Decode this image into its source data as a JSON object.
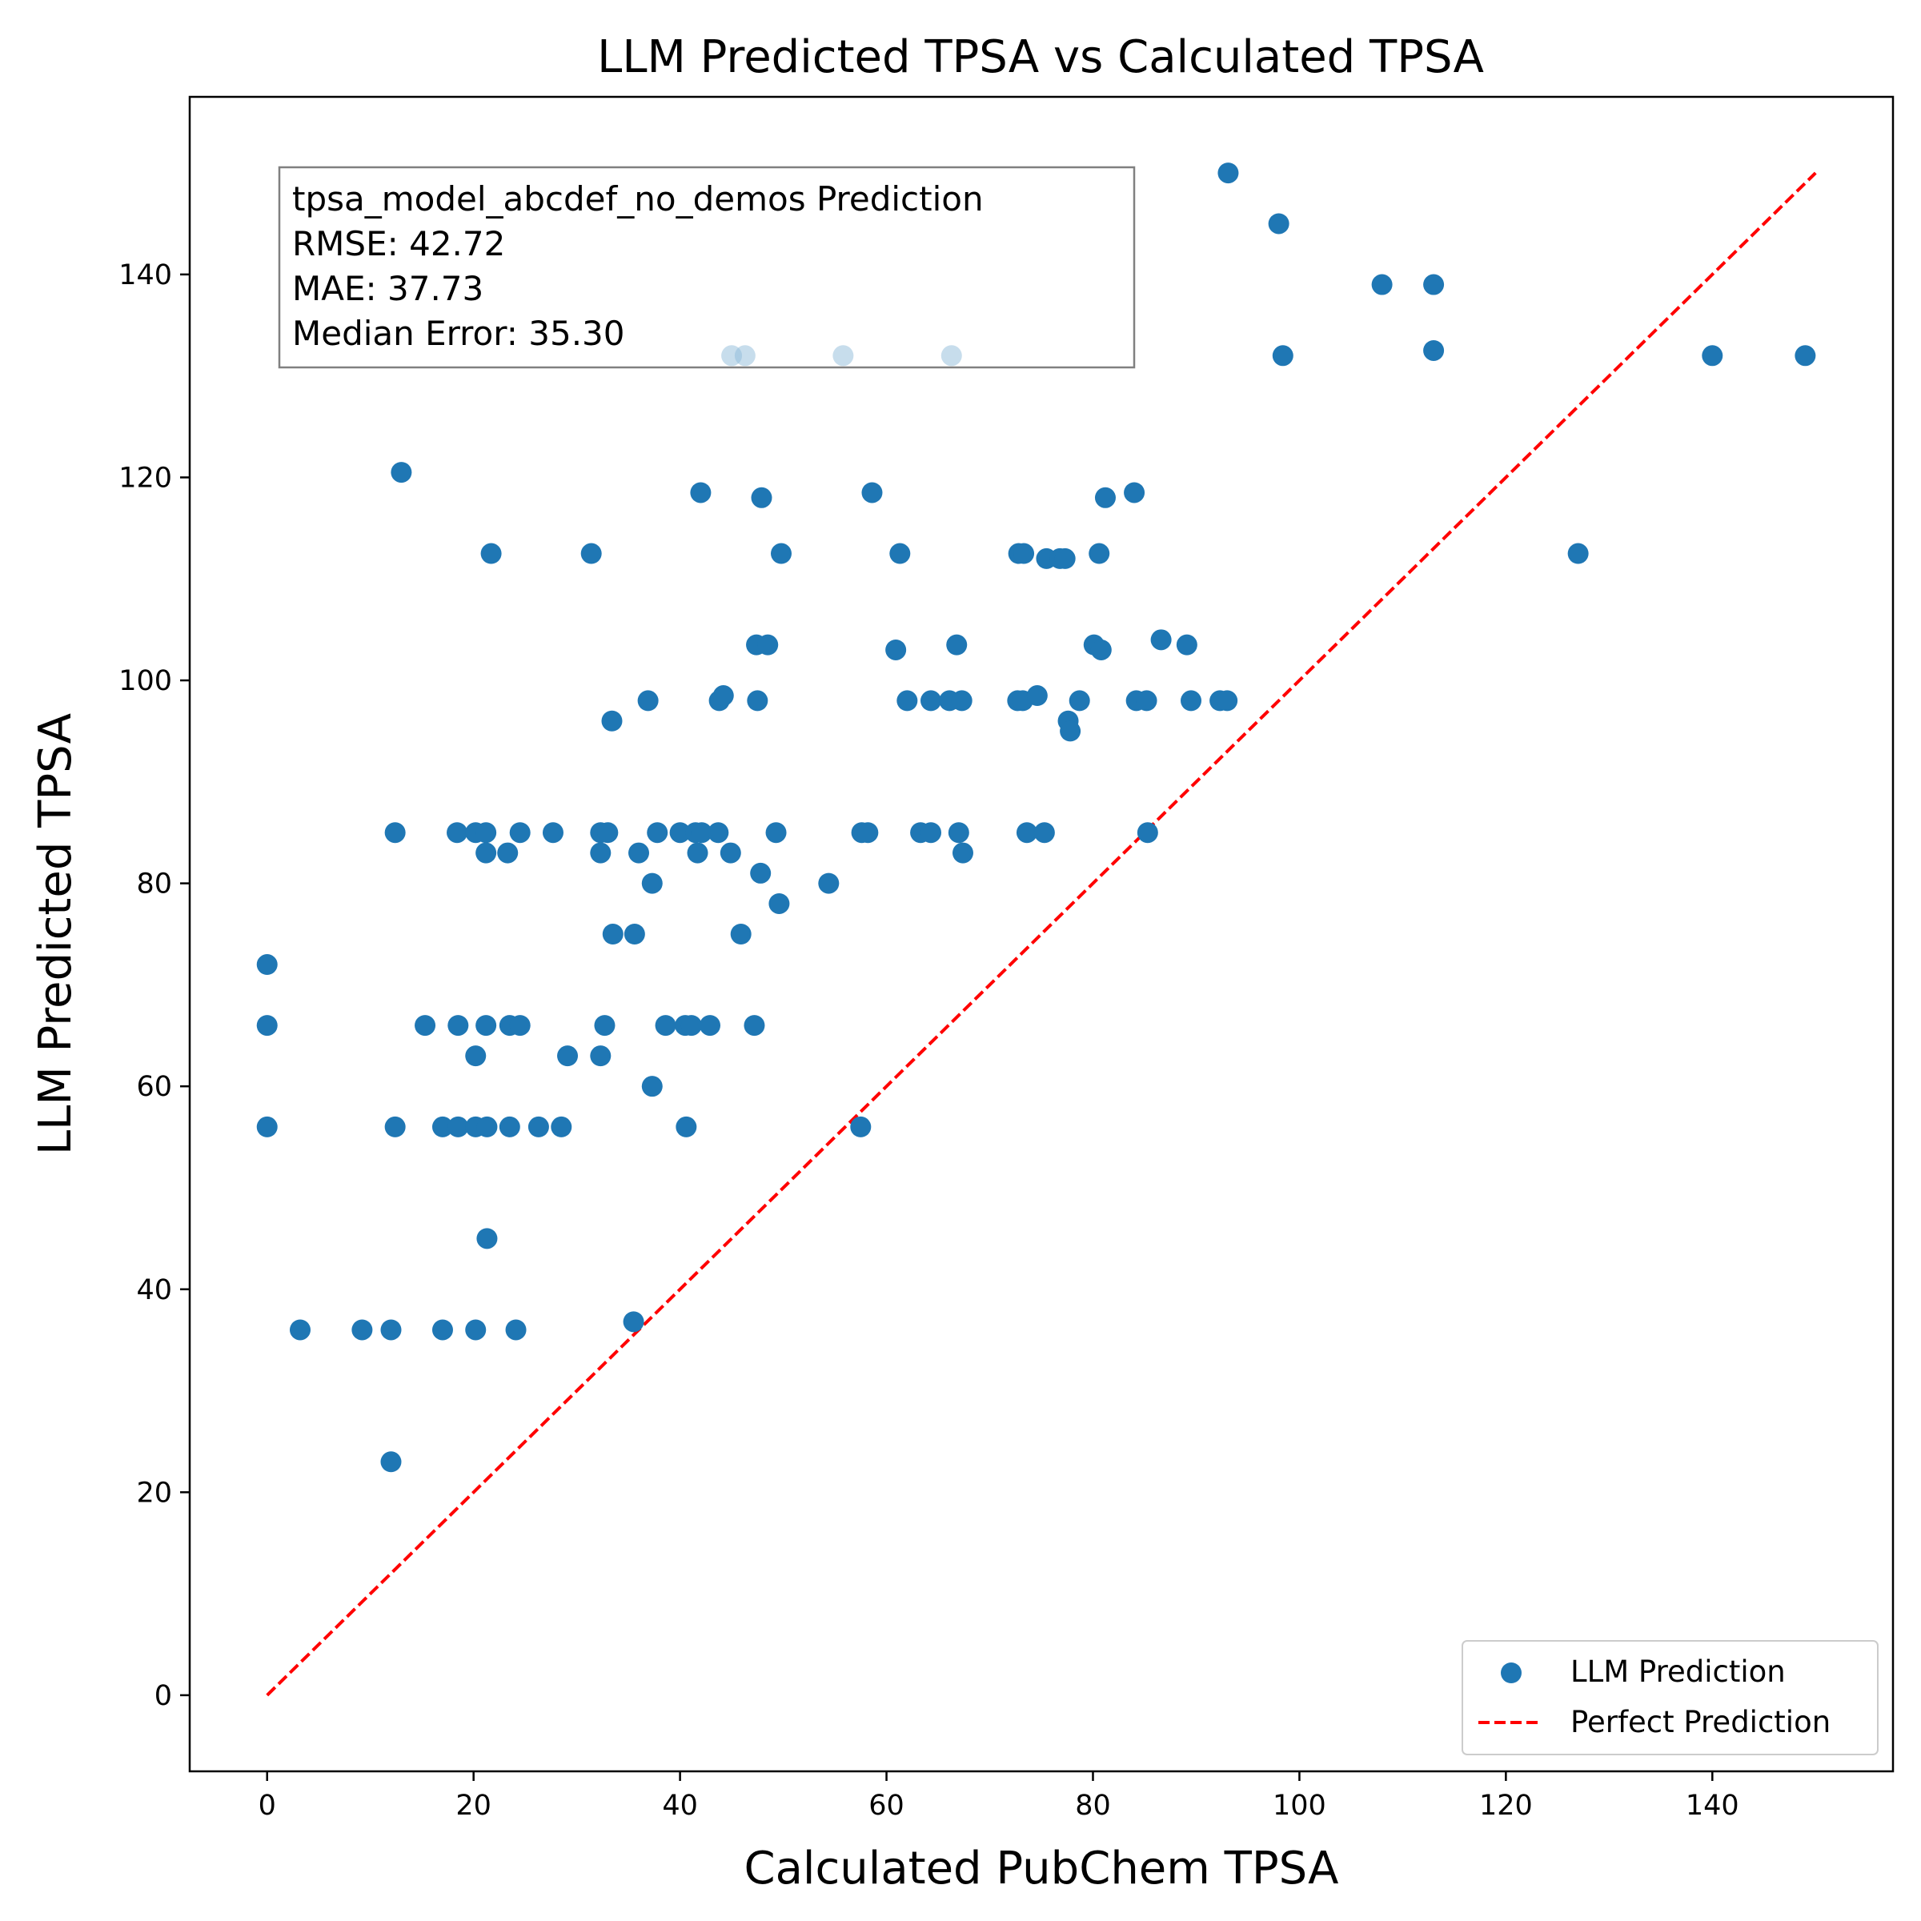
{
  "chart_data": {
    "type": "scatter",
    "title": "LLM Predicted TPSA vs Calculated TPSA",
    "xlabel": "Calculated PubChem TPSA",
    "ylabel": "LLM Predicted TPSA",
    "xlim": [
      -7.5,
      157.5
    ],
    "ylim": [
      -7.5,
      157.5
    ],
    "xticks": [
      0,
      20,
      40,
      60,
      80,
      100,
      120,
      140
    ],
    "yticks": [
      0,
      20,
      40,
      60,
      80,
      100,
      120,
      140
    ],
    "grid": false,
    "legend_position": "lower-right",
    "stats_box": [
      "tpsa_model_abcdef_no_demos Prediction",
      "RMSE: 42.72",
      "MAE: 37.73",
      "Median Error: 35.30"
    ],
    "series": [
      {
        "name": "LLM Prediction",
        "kind": "scatter",
        "color": "#1f77b4",
        "points": [
          [
            0,
            72
          ],
          [
            0,
            66
          ],
          [
            0,
            56
          ],
          [
            3.2,
            36
          ],
          [
            9.2,
            36
          ],
          [
            12.0,
            36
          ],
          [
            12.0,
            23
          ],
          [
            12.4,
            85
          ],
          [
            12.4,
            56
          ],
          [
            13.0,
            120.5
          ],
          [
            15.3,
            66
          ],
          [
            17.0,
            56
          ],
          [
            17.0,
            36
          ],
          [
            18.4,
            85
          ],
          [
            18.5,
            66
          ],
          [
            18.5,
            56
          ],
          [
            20.2,
            85
          ],
          [
            20.2,
            63
          ],
          [
            20.2,
            56
          ],
          [
            20.2,
            36
          ],
          [
            21.2,
            85
          ],
          [
            21.2,
            83
          ],
          [
            21.2,
            66
          ],
          [
            21.3,
            56
          ],
          [
            21.3,
            45
          ],
          [
            21.7,
            112.5
          ],
          [
            23.3,
            83
          ],
          [
            23.5,
            66
          ],
          [
            23.5,
            56
          ],
          [
            24.1,
            36
          ],
          [
            24.5,
            85
          ],
          [
            24.5,
            66
          ],
          [
            26.3,
            56
          ],
          [
            27.7,
            85
          ],
          [
            28.5,
            56
          ],
          [
            29.1,
            63
          ],
          [
            31.4,
            112.5
          ],
          [
            32.3,
            85
          ],
          [
            32.3,
            83
          ],
          [
            32.3,
            63
          ],
          [
            32.7,
            66
          ],
          [
            33.0,
            85
          ],
          [
            33.4,
            96
          ],
          [
            33.5,
            75
          ],
          [
            35.5,
            36.8
          ],
          [
            35.6,
            75
          ],
          [
            36.0,
            83
          ],
          [
            36.9,
            98
          ],
          [
            37.3,
            80
          ],
          [
            37.3,
            60
          ],
          [
            37.8,
            85
          ],
          [
            38.6,
            66
          ],
          [
            40.0,
            85
          ],
          [
            40.5,
            66
          ],
          [
            40.6,
            56
          ],
          [
            41.1,
            66
          ],
          [
            41.5,
            85
          ],
          [
            41.7,
            83
          ],
          [
            42.0,
            118.5
          ],
          [
            42.1,
            85
          ],
          [
            42.9,
            66
          ],
          [
            43.7,
            85
          ],
          [
            43.8,
            98
          ],
          [
            44.2,
            98.5
          ],
          [
            44.9,
            83
          ],
          [
            45.9,
            75
          ],
          [
            47.2,
            66
          ],
          [
            47.4,
            103.5
          ],
          [
            47.5,
            98
          ],
          [
            47.8,
            81
          ],
          [
            47.9,
            118
          ],
          [
            48.5,
            103.5
          ],
          [
            49.3,
            85
          ],
          [
            49.6,
            78
          ],
          [
            49.8,
            112.5
          ],
          [
            54.4,
            80
          ],
          [
            57.5,
            56
          ],
          [
            57.6,
            85
          ],
          [
            58.2,
            85
          ],
          [
            58.6,
            118.5
          ],
          [
            60.9,
            103
          ],
          [
            61.3,
            112.5
          ],
          [
            62.0,
            98
          ],
          [
            63.3,
            85
          ],
          [
            64.3,
            98
          ],
          [
            64.3,
            85
          ],
          [
            66.1,
            98
          ],
          [
            66.8,
            103.5
          ],
          [
            67.0,
            85
          ],
          [
            67.3,
            98
          ],
          [
            67.4,
            83
          ],
          [
            72.7,
            98
          ],
          [
            72.8,
            112.5
          ],
          [
            73.2,
            98
          ],
          [
            73.3,
            112.5
          ],
          [
            73.6,
            85
          ],
          [
            74.6,
            98.5
          ],
          [
            75.3,
            85
          ],
          [
            75.5,
            112
          ],
          [
            76.8,
            112
          ],
          [
            77.3,
            112
          ],
          [
            77.6,
            96
          ],
          [
            77.8,
            95
          ],
          [
            78.7,
            98
          ],
          [
            80.1,
            103.5
          ],
          [
            80.6,
            112.5
          ],
          [
            80.8,
            103
          ],
          [
            81.2,
            118
          ],
          [
            84.0,
            118.5
          ],
          [
            84.2,
            98
          ],
          [
            85.2,
            98
          ],
          [
            85.3,
            85
          ],
          [
            86.6,
            104
          ],
          [
            89.1,
            103.5
          ],
          [
            89.5,
            98
          ],
          [
            92.3,
            98
          ],
          [
            93.0,
            98
          ],
          [
            93.1,
            150
          ],
          [
            98.0,
            145
          ],
          [
            98.4,
            132
          ],
          [
            108.0,
            139
          ],
          [
            113.0,
            139
          ],
          [
            113.0,
            132.5
          ],
          [
            127.0,
            112.5
          ],
          [
            140.0,
            132
          ],
          [
            149.0,
            132
          ]
        ],
        "faded_points": [
          [
            45.0,
            132
          ],
          [
            46.3,
            132
          ],
          [
            55.8,
            132
          ],
          [
            66.3,
            132
          ]
        ]
      },
      {
        "name": "Perfect Prediction",
        "kind": "line",
        "color": "#ff0000",
        "dash": "dashed",
        "points": [
          [
            0,
            0
          ],
          [
            150,
            150
          ]
        ]
      }
    ]
  }
}
